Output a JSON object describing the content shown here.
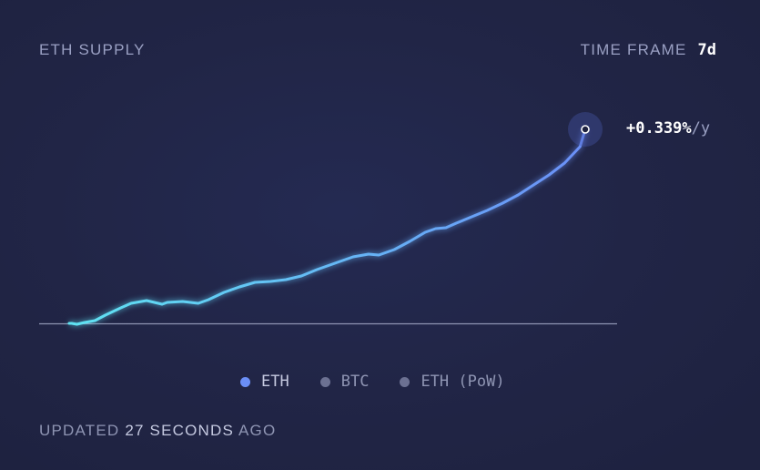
{
  "header": {
    "title": "ETH SUPPLY",
    "timeframe_label": "TIME FRAME",
    "timeframe_value": "7d"
  },
  "rate": {
    "value": "+0.339%",
    "unit": "/y"
  },
  "legend": [
    {
      "label": "ETH",
      "color": "#6b8ff7",
      "active": true
    },
    {
      "label": "BTC",
      "color": "#6c7192",
      "active": false
    },
    {
      "label": "ETH (PoW)",
      "color": "#6c7192",
      "active": false
    }
  ],
  "footer": {
    "prefix": "UPDATED",
    "value": "27 SECONDS",
    "suffix": "AGO"
  },
  "colors": {
    "line_start": "#5fe3f2",
    "line_end": "#6b8ff7",
    "baseline": "#8f95b3"
  },
  "chart_data": {
    "type": "line",
    "title": "ETH SUPPLY",
    "grid": false,
    "legend_placement": "bottom",
    "ylim": [
      0,
      213
    ],
    "series": [
      {
        "name": "ETH",
        "x": [
          0,
          0.5,
          1.5,
          3,
          5,
          7,
          10,
          12,
          15,
          18,
          19,
          22,
          25,
          27,
          30,
          33,
          36,
          39,
          42,
          45,
          48,
          50,
          52,
          55,
          58,
          60,
          63,
          66,
          69,
          71,
          73,
          75,
          78,
          81,
          84,
          87,
          90,
          93,
          96,
          99,
          100
        ],
        "values": [
          0,
          0,
          -1,
          1,
          3,
          9,
          17,
          22,
          25,
          21,
          23,
          24,
          22,
          26,
          34,
          40,
          45,
          46,
          48,
          52,
          59,
          63,
          67,
          73,
          76,
          75,
          81,
          90,
          100,
          104,
          105,
          110,
          117,
          124,
          132,
          141,
          152,
          163,
          176,
          194,
          213
        ]
      }
    ]
  }
}
